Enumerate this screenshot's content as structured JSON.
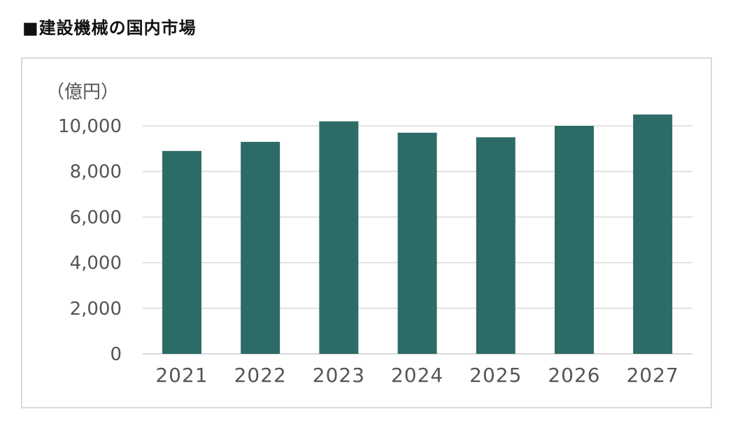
{
  "page": {
    "title": "■建設機械の国内市場"
  },
  "chart_data": {
    "type": "bar",
    "unit_label": "（億円）",
    "categories": [
      "2021",
      "2022",
      "2023",
      "2024",
      "2025",
      "2026",
      "2027"
    ],
    "values": [
      8900,
      9300,
      10200,
      9700,
      9500,
      10000,
      10500
    ],
    "ylim": [
      0,
      10000
    ],
    "yticks": [
      0,
      2000,
      4000,
      6000,
      8000,
      10000
    ],
    "ytick_labels": [
      "0",
      "2,000",
      "4,000",
      "6,000",
      "8,000",
      "10,000"
    ],
    "grid": true,
    "legend": "none",
    "bar_color": "#2d6b67",
    "grid_color": "#d9d9d9"
  }
}
